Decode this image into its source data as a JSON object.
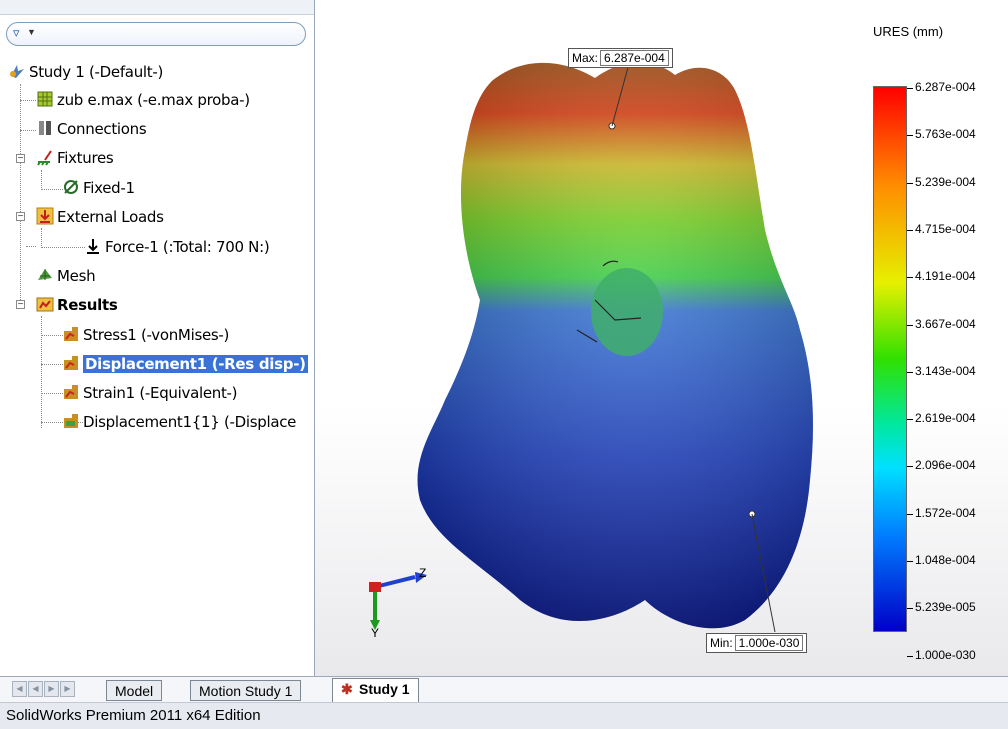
{
  "app": {
    "status_text": "SolidWorks Premium 2011 x64 Edition"
  },
  "tree": {
    "items": [
      {
        "label": "Study 1 (-Default-)"
      },
      {
        "label": "zub  e.max (-e.max proba-)"
      },
      {
        "label": "Connections"
      },
      {
        "label": "Fixtures"
      },
      {
        "label": "Fixed-1"
      },
      {
        "label": "External Loads"
      },
      {
        "label": "Force-1 (:Total: 700 N:)"
      },
      {
        "label": "Mesh"
      },
      {
        "label": "Results"
      },
      {
        "label": "Stress1 (-vonMises-)"
      },
      {
        "label": "Displacement1 (-Res disp-)"
      },
      {
        "label": "Strain1 (-Equivalent-)"
      },
      {
        "label": "Displacement1{1} (-Displace"
      }
    ]
  },
  "viewport": {
    "max_label": "Max:",
    "max_value": "6.287e-004",
    "min_label": "Min:",
    "min_value": "1.000e-030",
    "triad": {
      "z": "Z",
      "y": "Y"
    }
  },
  "legend": {
    "title": "URES (mm)",
    "values": [
      "6.287e-004",
      "5.763e-004",
      "5.239e-004",
      "4.715e-004",
      "4.191e-004",
      "3.667e-004",
      "3.143e-004",
      "2.619e-004",
      "2.096e-004",
      "1.572e-004",
      "1.048e-004",
      "5.239e-005",
      "1.000e-030"
    ],
    "colors": {
      "top": "#ff0000",
      "mid": "#30e000",
      "bottom": "#0000c8"
    }
  },
  "tabs": [
    {
      "label": "Model"
    },
    {
      "label": "Motion Study 1"
    },
    {
      "label": "Study 1",
      "active": true
    }
  ]
}
